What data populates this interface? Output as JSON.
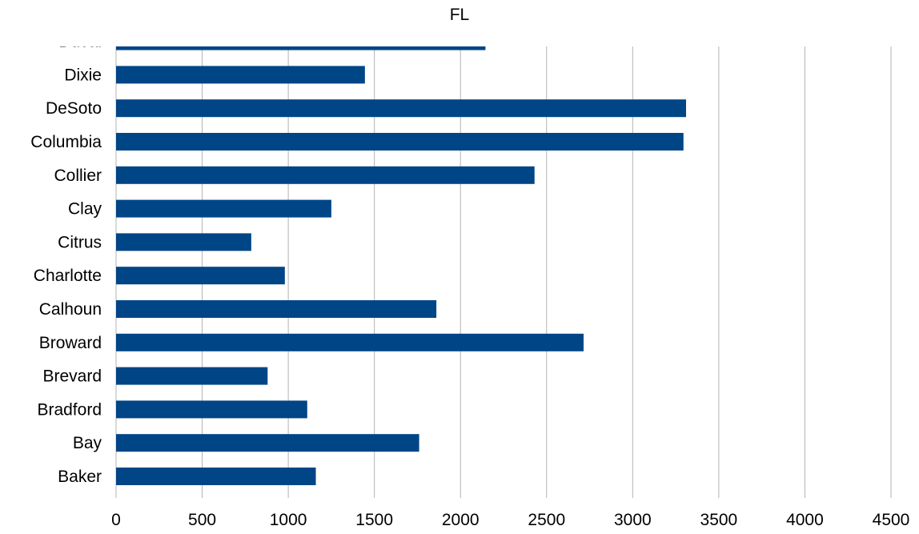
{
  "chart_data": {
    "type": "bar",
    "orientation": "horizontal",
    "title": "FL",
    "categories": [
      "Baker",
      "Bay",
      "Bradford",
      "Brevard",
      "Broward",
      "Calhoun",
      "Charlotte",
      "Citrus",
      "Clay",
      "Collier",
      "Columbia",
      "DeSoto",
      "Dixie",
      "Duval"
    ],
    "values": [
      1160,
      1760,
      1110,
      880,
      2715,
      1860,
      980,
      785,
      1250,
      2430,
      3295,
      3310,
      1445,
      2145
    ],
    "xlim": [
      0,
      4500
    ],
    "x_ticks": [
      "0",
      "500",
      "1000",
      "1500",
      "2000",
      "2500",
      "3000",
      "3500",
      "4000",
      "4500"
    ],
    "xlabel": "",
    "ylabel": "",
    "grid": "vertical",
    "legend": "none",
    "bar_color": "#004586",
    "grid_color": "#b3b3b3"
  }
}
